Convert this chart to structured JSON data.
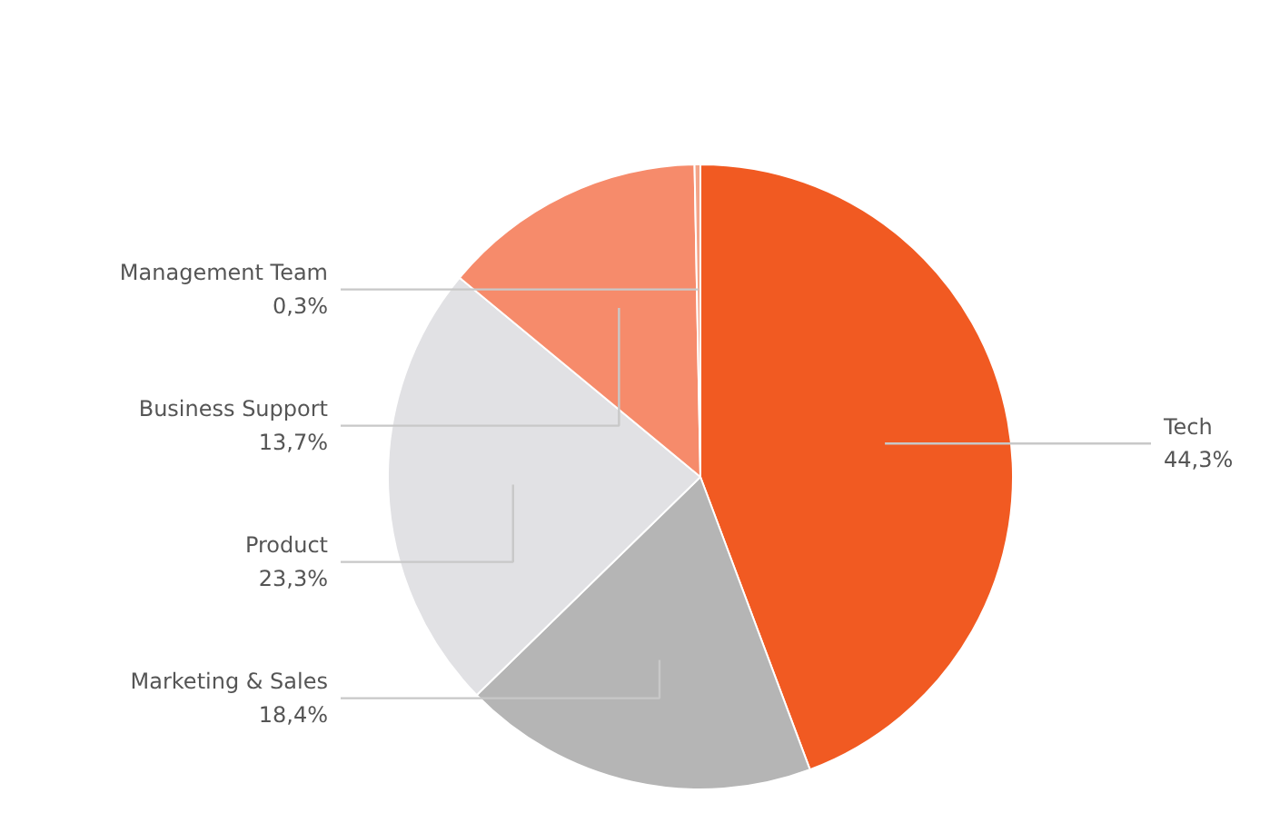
{
  "chart_data": {
    "type": "pie",
    "categories": [
      "Tech",
      "Marketing & Sales",
      "Product",
      "Business Support",
      "Management Team"
    ],
    "values": [
      44.3,
      18.4,
      23.3,
      13.7,
      0.3
    ],
    "colors": [
      "#f15a22",
      "#b5b5b5",
      "#e1e1e4",
      "#f68b6b",
      "#f3a488"
    ],
    "value_labels": [
      "44,3%",
      "18,4%",
      "23,3%",
      "13,7%",
      "0,3%"
    ]
  }
}
